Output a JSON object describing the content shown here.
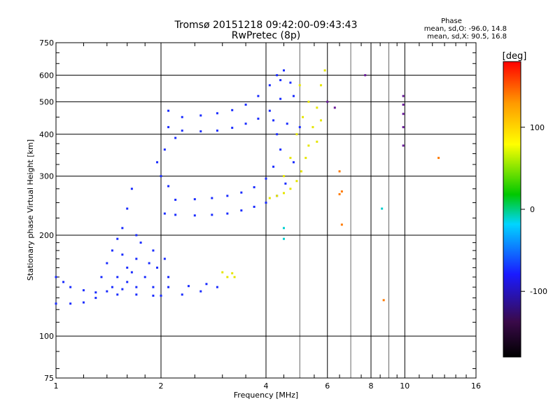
{
  "chart_data": {
    "type": "scatter",
    "title": "Tromsø 20151218 09:42:00-09:43:43",
    "subtitle": "RwPretec (8p)",
    "xlabel": "Frequency [MHz]",
    "ylabel": "Stationary phase Virtual Height [km]",
    "x_scale": "log",
    "y_scale": "log",
    "xlim": [
      1,
      16
    ],
    "ylim": [
      75,
      750
    ],
    "x_ticks": [
      "1",
      "2",
      "4",
      "6",
      "8",
      "10",
      "16"
    ],
    "y_ticks": [
      "75",
      "100",
      "200",
      "300",
      "400",
      "500",
      "600",
      "750"
    ],
    "grid": true,
    "stats": {
      "heading": "Phase",
      "line_o": "mean, sd,O: -96.0, 14.8",
      "line_x": "mean, sd,X:  90.5, 16.8"
    },
    "colorbar": {
      "label": "[deg]",
      "min": -180,
      "max": 180,
      "ticks": [
        "100",
        "0",
        "-100"
      ],
      "tick_values": [
        100,
        0,
        -100
      ],
      "colors": [
        "#000000",
        "#3a0a4a",
        "#1a1aff",
        "#00d5ff",
        "#00c800",
        "#ffff00",
        "#ff9900",
        "#ff0000"
      ]
    },
    "series": [
      {
        "name": "",
        "phase": -110,
        "color": "#1a2cff",
        "points": [
          [
            1.0,
            125
          ],
          [
            1.1,
            125
          ],
          [
            1.2,
            126
          ],
          [
            1.3,
            130
          ],
          [
            1.5,
            133
          ],
          [
            1.7,
            133
          ],
          [
            1.9,
            132
          ],
          [
            2.0,
            132
          ],
          [
            2.3,
            133
          ],
          [
            2.6,
            136
          ],
          [
            2.9,
            140
          ],
          [
            1.0,
            150
          ],
          [
            1.05,
            145
          ],
          [
            1.1,
            140
          ],
          [
            1.2,
            137
          ],
          [
            1.3,
            135
          ],
          [
            1.4,
            136
          ],
          [
            1.55,
            138
          ],
          [
            1.7,
            140
          ],
          [
            1.9,
            140
          ],
          [
            2.1,
            140
          ],
          [
            2.4,
            141
          ],
          [
            2.7,
            143
          ],
          [
            1.35,
            150
          ],
          [
            1.4,
            165
          ],
          [
            1.45,
            180
          ],
          [
            1.5,
            195
          ],
          [
            1.55,
            210
          ],
          [
            1.6,
            240
          ],
          [
            1.65,
            275
          ],
          [
            1.6,
            160
          ],
          [
            1.7,
            170
          ],
          [
            1.75,
            190
          ],
          [
            1.5,
            150
          ],
          [
            1.65,
            155
          ],
          [
            1.8,
            150
          ],
          [
            1.85,
            165
          ],
          [
            1.9,
            180
          ],
          [
            1.95,
            160
          ],
          [
            2.05,
            170
          ],
          [
            2.1,
            150
          ],
          [
            1.45,
            140
          ],
          [
            1.6,
            145
          ],
          [
            1.7,
            200
          ],
          [
            1.55,
            175
          ],
          [
            2.05,
            232
          ],
          [
            2.2,
            230
          ],
          [
            2.5,
            229
          ],
          [
            2.8,
            230
          ],
          [
            3.1,
            232
          ],
          [
            3.4,
            237
          ],
          [
            3.7,
            243
          ],
          [
            4.0,
            250
          ],
          [
            4.3,
            262
          ],
          [
            4.55,
            285
          ],
          [
            4.8,
            330
          ],
          [
            5.0,
            420
          ],
          [
            2.2,
            255
          ],
          [
            2.5,
            256
          ],
          [
            2.8,
            258
          ],
          [
            3.1,
            262
          ],
          [
            3.4,
            268
          ],
          [
            3.7,
            278
          ],
          [
            4.0,
            295
          ],
          [
            4.2,
            320
          ],
          [
            4.4,
            360
          ],
          [
            4.6,
            430
          ],
          [
            4.8,
            520
          ],
          [
            2.3,
            410
          ],
          [
            2.6,
            408
          ],
          [
            2.9,
            410
          ],
          [
            3.2,
            418
          ],
          [
            3.5,
            430
          ],
          [
            3.8,
            445
          ],
          [
            4.1,
            470
          ],
          [
            4.4,
            510
          ],
          [
            4.7,
            570
          ],
          [
            2.3,
            450
          ],
          [
            2.6,
            455
          ],
          [
            2.9,
            462
          ],
          [
            3.2,
            472
          ],
          [
            3.5,
            490
          ],
          [
            3.8,
            520
          ],
          [
            4.1,
            560
          ],
          [
            4.3,
            600
          ],
          [
            2.1,
            280
          ],
          [
            2.0,
            300
          ],
          [
            1.95,
            330
          ],
          [
            2.05,
            360
          ],
          [
            2.1,
            420
          ],
          [
            2.1,
            470
          ],
          [
            2.2,
            390
          ],
          [
            4.2,
            440
          ],
          [
            4.3,
            400
          ],
          [
            4.5,
            620
          ],
          [
            4.4,
            580
          ]
        ]
      },
      {
        "name": "",
        "phase": 95,
        "color": "#e6e600",
        "points": [
          [
            4.1,
            258
          ],
          [
            4.3,
            262
          ],
          [
            4.5,
            267
          ],
          [
            4.7,
            275
          ],
          [
            4.9,
            290
          ],
          [
            5.05,
            310
          ],
          [
            5.2,
            340
          ],
          [
            5.3,
            370
          ],
          [
            5.45,
            420
          ],
          [
            5.6,
            480
          ],
          [
            5.75,
            560
          ],
          [
            5.9,
            620
          ],
          [
            4.5,
            300
          ],
          [
            4.7,
            340
          ],
          [
            4.9,
            400
          ],
          [
            5.1,
            450
          ],
          [
            5.3,
            500
          ],
          [
            5.0,
            560
          ],
          [
            5.6,
            380
          ],
          [
            5.75,
            440
          ],
          [
            3.0,
            155
          ],
          [
            3.1,
            150
          ],
          [
            3.2,
            154
          ],
          [
            3.25,
            150
          ]
        ]
      },
      {
        "name": "",
        "phase": 30,
        "color": "#00cfcf",
        "points": [
          [
            4.5,
            210
          ],
          [
            4.5,
            195
          ],
          [
            8.6,
            240
          ]
        ]
      },
      {
        "name": "",
        "phase": 150,
        "color": "#ff7a00",
        "points": [
          [
            6.6,
            270
          ],
          [
            6.6,
            215
          ],
          [
            6.5,
            265
          ],
          [
            8.7,
            128
          ],
          [
            12.5,
            340
          ],
          [
            6.5,
            310
          ]
        ]
      },
      {
        "name": "",
        "phase": -140,
        "color": "#6a1a9a",
        "points": [
          [
            9.9,
            370
          ],
          [
            9.9,
            420
          ],
          [
            9.9,
            460
          ],
          [
            9.9,
            520
          ],
          [
            9.9,
            490
          ],
          [
            7.7,
            600
          ],
          [
            6.0,
            500
          ],
          [
            6.3,
            480
          ]
        ]
      }
    ]
  }
}
